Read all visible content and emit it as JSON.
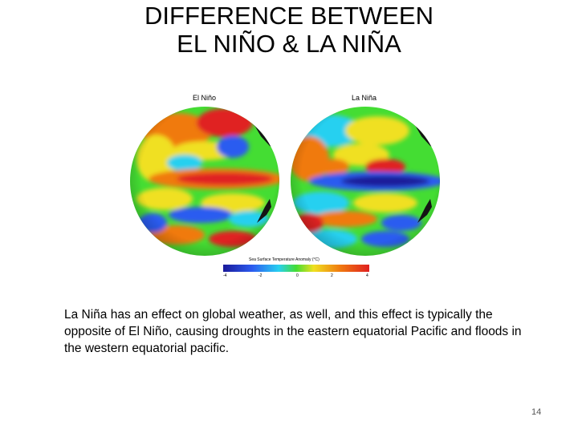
{
  "slide": {
    "title_line1": "DIFFERENCE BETWEEN",
    "title_line2": "EL NIÑO & LA NIÑA",
    "body": "La Niña has an effect on global weather, as well, and this effect is typically the opposite of El Niño, causing droughts in the eastern equatorial Pacific and floods in the western equatorial pacific.",
    "page_number": "14"
  },
  "figure": {
    "left_label": "El Niño",
    "right_label": "La Niña",
    "colorbar_title": "Sea Surface Temperature Anomaly (°C)",
    "colorbar_ticks": [
      "-4",
      "-2",
      "0",
      "2",
      "4"
    ],
    "colors": {
      "deep_blue": "#1a1a9a",
      "blue": "#2c5cf0",
      "cyan": "#28d0f0",
      "green": "#44dd33",
      "yellow": "#f0e020",
      "orange": "#f07a10",
      "red": "#e02020",
      "land": "#141414"
    }
  }
}
